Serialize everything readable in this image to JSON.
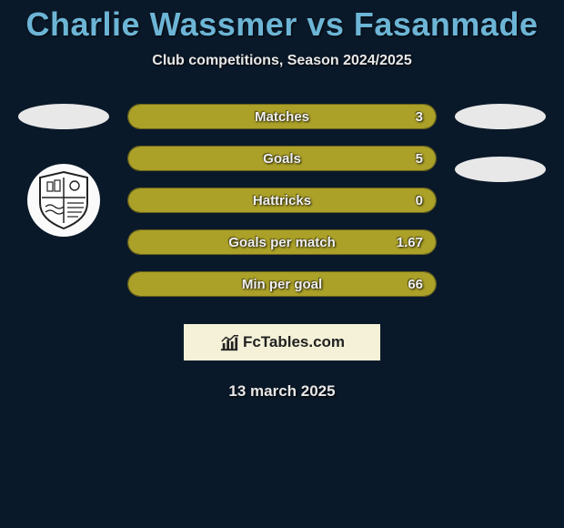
{
  "title": "Charlie Wassmer vs Fasanmade",
  "subtitle": "Club competitions, Season 2024/2025",
  "date": "13 march 2025",
  "branding_text": "FcTables.com",
  "colors": {
    "background": "#0a1929",
    "title": "#6db5d6",
    "text": "#e8e8e8",
    "bar_fill": "#aba028",
    "bar_border": "#68611c",
    "oval": "#e8e8e8",
    "branding_bg": "#f5f1d8"
  },
  "bars": [
    {
      "label": "Matches",
      "value": "3",
      "fill_pct": 100
    },
    {
      "label": "Goals",
      "value": "5",
      "fill_pct": 100
    },
    {
      "label": "Hattricks",
      "value": "0",
      "fill_pct": 100
    },
    {
      "label": "Goals per match",
      "value": "1.67",
      "fill_pct": 100
    },
    {
      "label": "Min per goal",
      "value": "66",
      "fill_pct": 100
    }
  ],
  "left_side_shapes": [
    "oval",
    "crest"
  ],
  "right_side_shapes": [
    "oval",
    "oval"
  ]
}
